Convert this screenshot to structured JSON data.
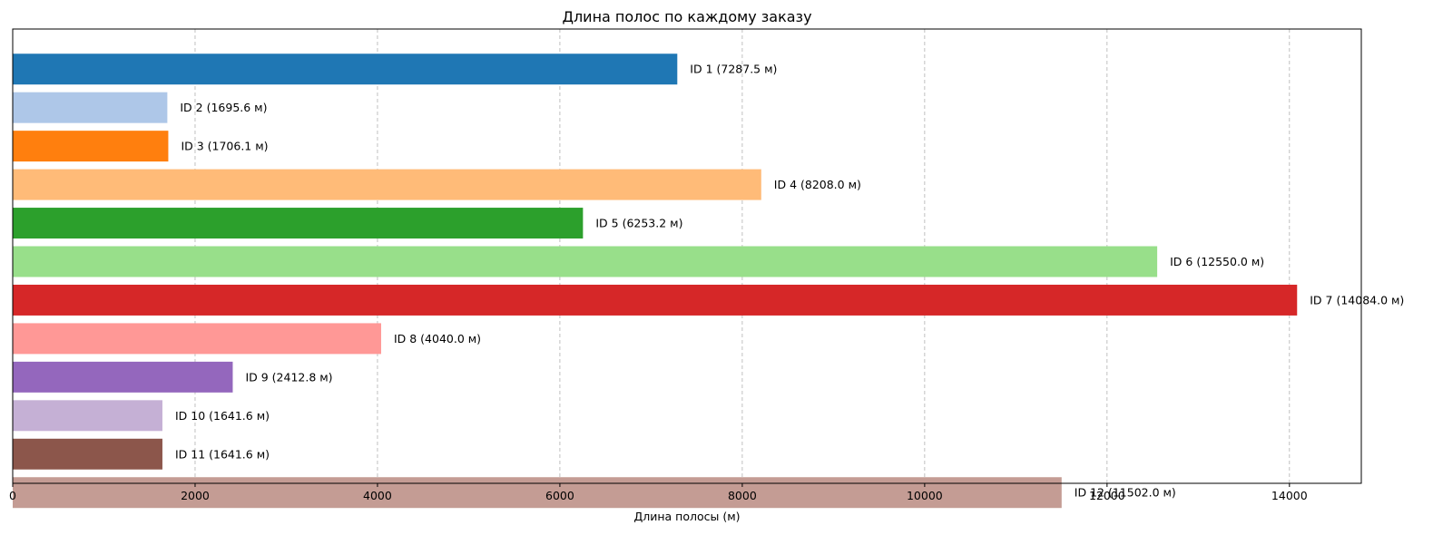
{
  "chart_data": {
    "type": "bar",
    "orientation": "horizontal",
    "title": "Длина полос по каждому заказу",
    "xlabel": "Длина полосы (м)",
    "ylabel": "",
    "xlim": [
      0,
      14788
    ],
    "xticks": [
      0,
      2000,
      4000,
      6000,
      8000,
      10000,
      12000,
      14000
    ],
    "grid": "x-dashed",
    "categories": [
      "ID 1",
      "ID 2",
      "ID 3",
      "ID 4",
      "ID 5",
      "ID 6",
      "ID 7",
      "ID 8",
      "ID 9",
      "ID 10",
      "ID 11",
      "ID 12"
    ],
    "values": [
      7287.5,
      1695.6,
      1706.1,
      8208.0,
      6253.2,
      12550.0,
      14084.0,
      4040.0,
      2412.8,
      1641.6,
      1641.6,
      11502.0
    ],
    "labels": [
      "ID 1 (7287.5 м)",
      "ID 2 (1695.6 м)",
      "ID 3 (1706.1 м)",
      "ID 4 (8208.0 м)",
      "ID 5 (6253.2 м)",
      "ID 6 (12550.0 м)",
      "ID 7 (14084.0 м)",
      "ID 8 (4040.0 м)",
      "ID 9 (2412.8 м)",
      "ID 10 (1641.6 м)",
      "ID 11 (1641.6 м)",
      "ID 12 (11502.0 м)"
    ],
    "colors": [
      "#1f77b4",
      "#aec7e8",
      "#ff7f0e",
      "#ffbb78",
      "#2ca02c",
      "#98df8a",
      "#d62728",
      "#ff9896",
      "#9467bd",
      "#c5b0d5",
      "#8c564b",
      "#c49c94"
    ]
  }
}
